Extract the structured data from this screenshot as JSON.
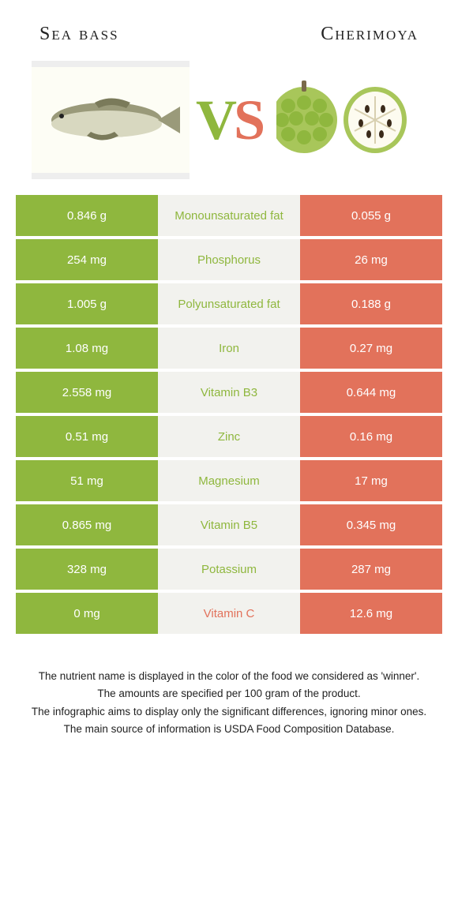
{
  "colors": {
    "left": "#8fb73e",
    "right": "#e2725b",
    "mid_bg": "#f2f2ee",
    "text_dark": "#222222"
  },
  "food_left": {
    "title": "Sea bass"
  },
  "food_right": {
    "title": "Cherimoya"
  },
  "vs": {
    "v": "V",
    "s": "S"
  },
  "rows": [
    {
      "label": "Monounsaturated fat",
      "left": "0.846 g",
      "right": "0.055 g",
      "winner": "left"
    },
    {
      "label": "Phosphorus",
      "left": "254 mg",
      "right": "26 mg",
      "winner": "left"
    },
    {
      "label": "Polyunsaturated fat",
      "left": "1.005 g",
      "right": "0.188 g",
      "winner": "left"
    },
    {
      "label": "Iron",
      "left": "1.08 mg",
      "right": "0.27 mg",
      "winner": "left"
    },
    {
      "label": "Vitamin B3",
      "left": "2.558 mg",
      "right": "0.644 mg",
      "winner": "left"
    },
    {
      "label": "Zinc",
      "left": "0.51 mg",
      "right": "0.16 mg",
      "winner": "left"
    },
    {
      "label": "Magnesium",
      "left": "51 mg",
      "right": "17 mg",
      "winner": "left"
    },
    {
      "label": "Vitamin B5",
      "left": "0.865 mg",
      "right": "0.345 mg",
      "winner": "left"
    },
    {
      "label": "Potassium",
      "left": "328 mg",
      "right": "287 mg",
      "winner": "left"
    },
    {
      "label": "Vitamin C",
      "left": "0 mg",
      "right": "12.6 mg",
      "winner": "right"
    }
  ],
  "footer": {
    "line1": "The nutrient name is displayed in the color of the food we considered as 'winner'.",
    "line2": "The amounts are specified per 100 gram of the product.",
    "line3": "The infographic aims to display only the significant differences, ignoring minor ones.",
    "line4": "The main source of information is USDA Food Composition Database."
  }
}
